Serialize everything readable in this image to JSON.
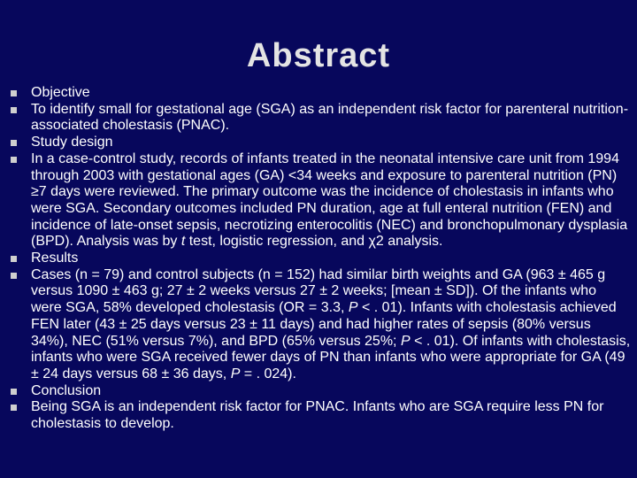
{
  "title": "Abstract",
  "items": [
    {
      "runs": [
        {
          "text": "Objective"
        }
      ]
    },
    {
      "runs": [
        {
          "text": "To identify small for gestational age (SGA) as an independent risk factor for parenteral nutrition-associated cholestasis (PNAC)."
        }
      ]
    },
    {
      "runs": [
        {
          "text": "Study design"
        }
      ]
    },
    {
      "runs": [
        {
          "text": "In a case-control study, records of infants treated in the neonatal intensive care unit from 1994 through 2003 with gestational ages (GA) <34 weeks and exposure to parenteral nutrition (PN) ≥7 days were reviewed. The primary outcome was the incidence of cholestasis in infants who were SGA. Secondary outcomes included PN duration, age at full enteral nutrition (FEN) and incidence of late-onset sepsis, necrotizing enterocolitis (NEC) and bronchopulmonary dysplasia (BPD). Analysis was by "
        },
        {
          "text": "t",
          "italic": true
        },
        {
          "text": " test, logistic regression, and χ2 analysis."
        }
      ]
    },
    {
      "runs": [
        {
          "text": "Results"
        }
      ]
    },
    {
      "runs": [
        {
          "text": "Cases (n = 79) and control subjects (n = 152) had similar birth weights and GA (963 ± 465 g versus 1090 ± 463 g; 27 ± 2 weeks versus 27 ± 2 weeks; [mean ± SD]). Of the infants who were SGA, 58% developed cholestasis (OR = 3.3, "
        },
        {
          "text": "P",
          "italic": true
        },
        {
          "text": " < . 01). Infants with cholestasis achieved FEN later (43 ± 25 days versus 23 ± 11 days) and had higher rates of sepsis (80% versus 34%), NEC (51% versus 7%), and BPD (65% versus 25%; "
        },
        {
          "text": "P",
          "italic": true
        },
        {
          "text": " < . 01). Of infants with cholestasis, infants who were SGA received fewer days of PN than infants who were appropriate for GA (49 ± 24 days versus 68 ± 36 days, "
        },
        {
          "text": "P",
          "italic": true
        },
        {
          "text": " = . 024)."
        }
      ]
    },
    {
      "runs": [
        {
          "text": "Conclusion"
        }
      ]
    },
    {
      "runs": [
        {
          "text": "Being SGA is an independent risk factor for PNAC. Infants who are SGA require less PN for cholestasis to develop."
        }
      ]
    }
  ]
}
